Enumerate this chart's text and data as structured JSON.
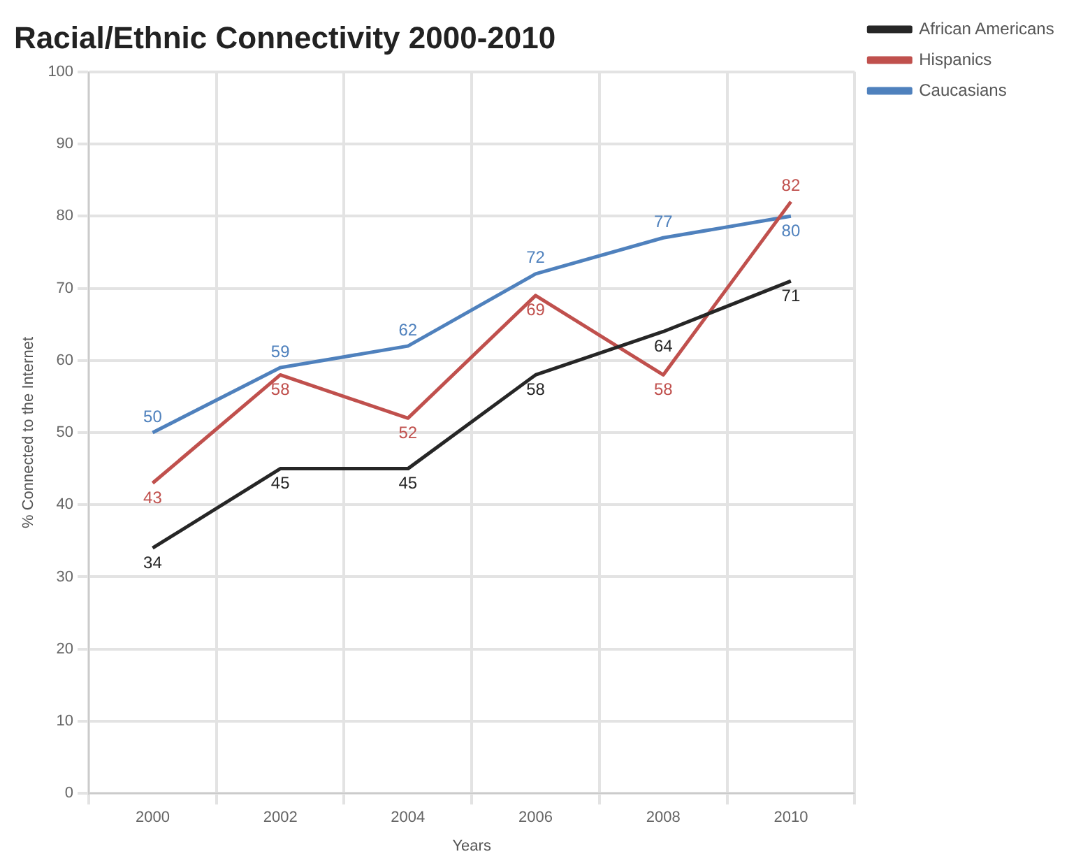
{
  "chart_data": {
    "type": "line",
    "title": "Racial/Ethnic Connectivity 2000-2010",
    "xlabel": "Years",
    "ylabel": "% Connected to the Internet",
    "categories": [
      "2000",
      "2002",
      "2004",
      "2006",
      "2008",
      "2010"
    ],
    "series": [
      {
        "name": "African Americans",
        "color": "#262626",
        "values": [
          34,
          45,
          45,
          58,
          64,
          71
        ]
      },
      {
        "name": "Hispanics",
        "color": "#c0504d",
        "values": [
          43,
          58,
          52,
          69,
          58,
          82
        ]
      },
      {
        "name": "Caucasians",
        "color": "#4f81bd",
        "values": [
          50,
          59,
          62,
          72,
          77,
          80
        ]
      }
    ],
    "ylim": [
      0,
      100
    ],
    "yticks": [
      0,
      10,
      20,
      30,
      40,
      50,
      60,
      70,
      80,
      90,
      100
    ],
    "grid": true,
    "legend": "top right",
    "marker": "none",
    "data_labels": true
  }
}
